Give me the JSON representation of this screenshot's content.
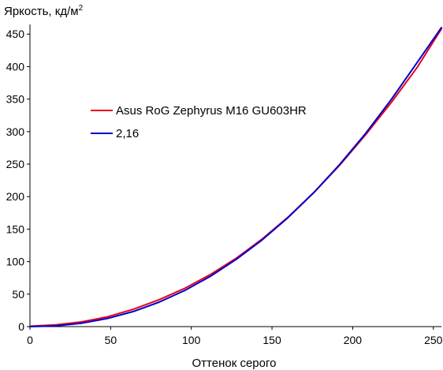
{
  "chart_data": {
    "type": "line",
    "ylabel": "Яркость, кд/м",
    "ylabel_superscript": "2",
    "xlabel": "Оттенок серого",
    "xlim": [
      0,
      255
    ],
    "ylim": [
      0,
      460
    ],
    "xticks": [
      0,
      50,
      100,
      150,
      200,
      250
    ],
    "yticks": [
      0,
      50,
      100,
      150,
      200,
      250,
      300,
      350,
      400,
      450
    ],
    "grid": false,
    "legend_position": "center-left",
    "series": [
      {
        "name": "Asus RoG Zephyrus M16 GU603HR",
        "color": "#e8001c",
        "x": [
          0,
          16,
          32,
          48,
          64,
          80,
          96,
          112,
          128,
          144,
          160,
          176,
          192,
          208,
          224,
          240,
          255
        ],
        "y": [
          0.6,
          2.8,
          7.3,
          15.0,
          26.6,
          41.4,
          59.0,
          80.5,
          105.5,
          135.0,
          168.5,
          206.5,
          248.5,
          295.0,
          345.0,
          399.0,
          458.0
        ]
      },
      {
        "name": "2,16",
        "color": "#0000cc",
        "x": [
          0,
          16,
          32,
          48,
          64,
          80,
          96,
          112,
          128,
          144,
          160,
          176,
          192,
          208,
          224,
          240,
          255
        ],
        "y": [
          0,
          1.16,
          5.2,
          12.5,
          23.2,
          37.6,
          55.7,
          77.7,
          103.6,
          133.6,
          167.9,
          206.5,
          249.6,
          297.2,
          349.5,
          406.5,
          460.0
        ]
      }
    ]
  }
}
